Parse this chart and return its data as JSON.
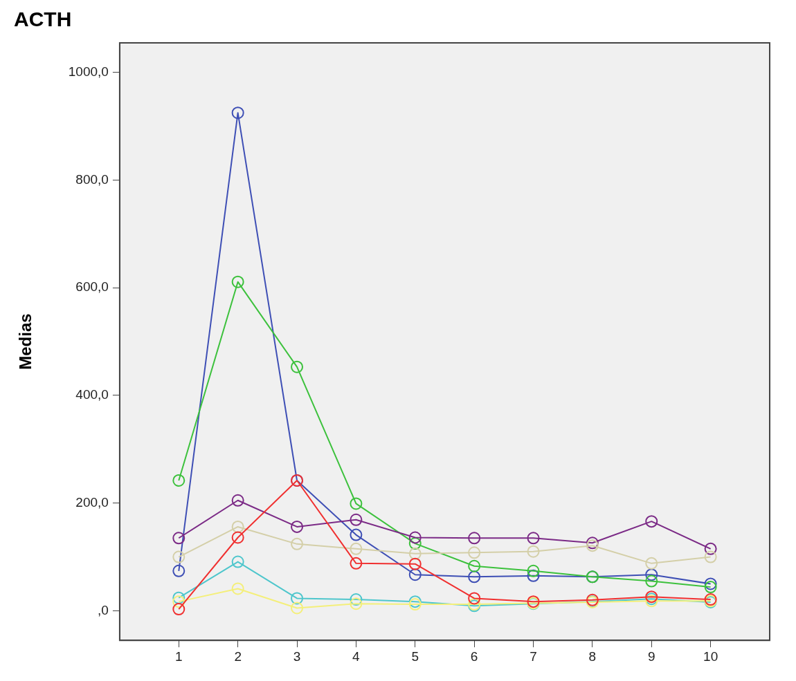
{
  "chart_data": {
    "type": "line",
    "title": "ACTH",
    "ylabel": "Medias",
    "x": [
      1,
      2,
      3,
      4,
      5,
      6,
      7,
      8,
      9,
      10
    ],
    "xlim": [
      0,
      11
    ],
    "xticks": [
      1,
      2,
      3,
      4,
      5,
      6,
      7,
      8,
      9,
      10
    ],
    "ylim": [
      -55,
      1055
    ],
    "yticks": [
      {
        "value": 0,
        "label": ",0"
      },
      {
        "value": 200,
        "label": "200,0"
      },
      {
        "value": 400,
        "label": "400,0"
      },
      {
        "value": 600,
        "label": "600,0"
      },
      {
        "value": 800,
        "label": "800,0"
      },
      {
        "value": 1000,
        "label": "1000,0"
      }
    ],
    "grid": false,
    "legend": false,
    "marker": "circle",
    "line_style": "solid",
    "series": [
      {
        "color": "#f03030",
        "values": [
          3,
          136,
          242,
          88,
          87,
          23,
          17,
          20,
          26,
          21
        ]
      },
      {
        "color": "#f4ef7a",
        "values": [
          17,
          41,
          5,
          13,
          12,
          12,
          14,
          16,
          18,
          18
        ]
      },
      {
        "color": "#d4cfa8",
        "values": [
          100,
          156,
          124,
          115,
          106,
          108,
          110,
          121,
          88,
          100
        ]
      },
      {
        "color": "#4ec6cc",
        "values": [
          24,
          91,
          23,
          21,
          17,
          9,
          13,
          17,
          22,
          16
        ]
      },
      {
        "color": "#7b2a86",
        "values": [
          135,
          205,
          156,
          169,
          136,
          135,
          135,
          126,
          166,
          115
        ]
      },
      {
        "color": "#3cc13c",
        "values": [
          242,
          611,
          453,
          199,
          125,
          83,
          74,
          63,
          55,
          44
        ]
      },
      {
        "color": "#3e4fb5",
        "values": [
          74,
          925,
          242,
          141,
          67,
          63,
          65,
          63,
          67,
          50
        ]
      }
    ]
  }
}
